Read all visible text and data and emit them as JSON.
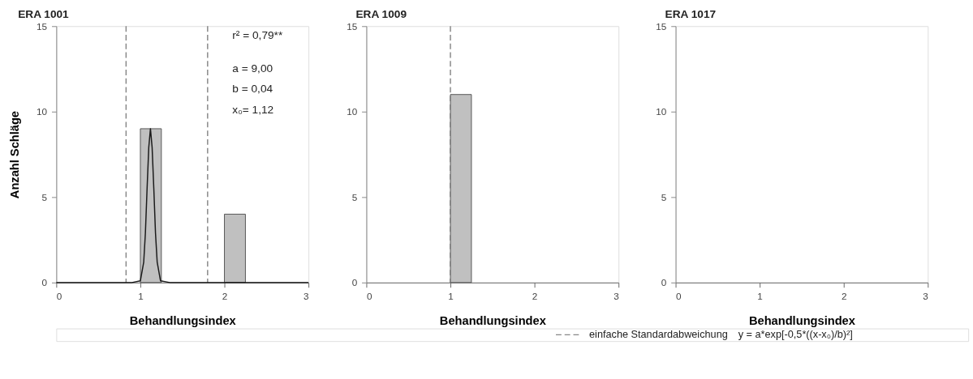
{
  "chart_data": [
    {
      "type": "histogram",
      "title": "ERA 1001",
      "xlabel": "Behandlungsindex",
      "ylabel": "Anzahl Schläge",
      "xlim": [
        0,
        3
      ],
      "ylim": [
        0,
        15
      ],
      "xticks": [
        0,
        1,
        2,
        3
      ],
      "yticks": [
        0,
        5,
        10,
        15
      ],
      "grid": false,
      "series": [
        {
          "type": "histogram",
          "color": "#c0c0c0",
          "bins": [
            1,
            1.25
          ],
          "values": [
            9
          ]
        },
        {
          "type": "histogram",
          "color": "#c0c0c0",
          "bins": [
            2,
            2.25
          ],
          "values": [
            4
          ]
        },
        {
          "type": "line",
          "color": "#1a1a1a",
          "x": [
            0,
            0.9,
            1.0,
            1.04,
            1.06,
            1.08,
            1.1,
            1.12,
            1.14,
            1.16,
            1.18,
            1.2,
            1.24,
            1.35,
            3
          ],
          "values": [
            0,
            0,
            0.1,
            1.2,
            2.9,
            5.5,
            7.9,
            9,
            7.9,
            5.5,
            2.9,
            1.2,
            0.1,
            0,
            0
          ]
        }
      ],
      "ref_lines": [
        {
          "axis": "x",
          "value": 0.83,
          "label": "einfache Standardabweichung",
          "color": "#888888",
          "line_style": "dashed"
        },
        {
          "axis": "x",
          "value": 1.8,
          "label": null,
          "color": "#888888",
          "line_style": "dashed"
        }
      ],
      "annotations": [
        "r² = 0,79**",
        "a = 9,00",
        "b = 0,04",
        "x₀= 1,12"
      ]
    },
    {
      "type": "histogram",
      "title": "ERA 1009",
      "xlabel": "Behandlungsindex",
      "xlim": [
        0,
        3
      ],
      "ylim": [
        0,
        15
      ],
      "xticks": [
        0,
        1,
        2,
        3
      ],
      "yticks": [
        0,
        5,
        10,
        15
      ],
      "grid": false,
      "bins": [
        1,
        1.25
      ],
      "values": [
        11
      ],
      "color": "#c0c0c0",
      "ref_lines": [
        {
          "axis": "x",
          "value": 1.0,
          "label": null,
          "color": "#888888",
          "line_style": "dashed"
        }
      ]
    },
    {
      "type": "histogram",
      "title": "ERA 1017",
      "xlabel": "Behandlungsindex",
      "xlim": [
        0,
        3
      ],
      "ylim": [
        0,
        15
      ],
      "xticks": [
        0,
        1,
        2,
        3
      ],
      "yticks": [
        0,
        5,
        10,
        15
      ],
      "grid": false,
      "annotations": [
        "y = a*exp[-0,5*((x-x₀)/b)²]"
      ]
    }
  ]
}
